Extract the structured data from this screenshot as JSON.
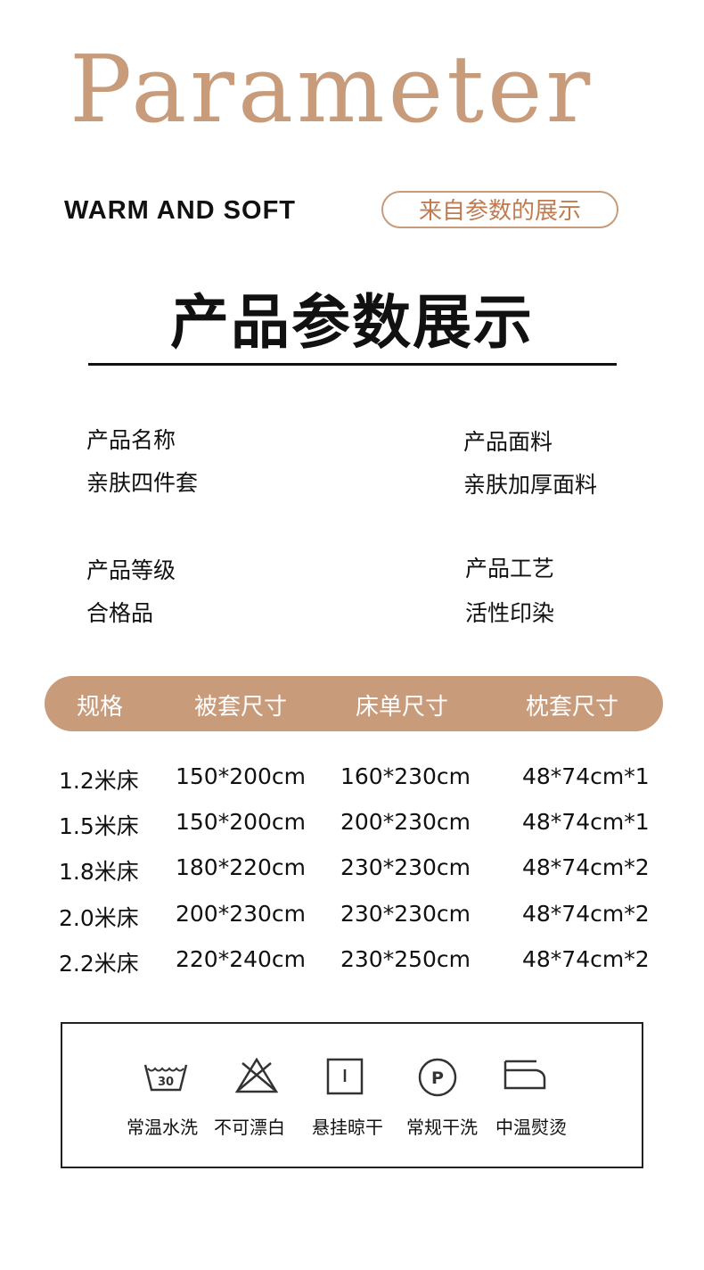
{
  "header": {
    "title": "Parameter",
    "subtitle_en": "WARM AND SOFT",
    "subtitle_cn": "来自参数的展示",
    "heading": "产品参数展示"
  },
  "params": [
    {
      "label": "产品名称",
      "value": "亲肤四件套"
    },
    {
      "label": "产品面料",
      "value": "亲肤加厚面料"
    },
    {
      "label": "产品等级",
      "value": "合格品"
    },
    {
      "label": "产品工艺",
      "value": "活性印染"
    }
  ],
  "table": {
    "headers": [
      "规格",
      "被套尺寸",
      "床单尺寸",
      "枕套尺寸"
    ],
    "rows": [
      [
        "1.2米床",
        "150*200cm",
        "160*230cm",
        "48*74cm*1"
      ],
      [
        "1.5米床",
        "150*200cm",
        "200*230cm",
        "48*74cm*1"
      ],
      [
        "1.8米床",
        "180*220cm",
        "230*230cm",
        "48*74cm*2"
      ],
      [
        "2.0米床",
        "200*230cm",
        "230*230cm",
        "48*74cm*2"
      ],
      [
        "2.2米床",
        "220*240cm",
        "230*250cm",
        "48*74cm*2"
      ]
    ]
  },
  "care": [
    {
      "icon": "wash-30-icon",
      "label": "常温水洗",
      "temp": "30"
    },
    {
      "icon": "no-bleach-icon",
      "label": "不可漂白"
    },
    {
      "icon": "hang-dry-icon",
      "label": "悬挂晾干"
    },
    {
      "icon": "dry-clean-p-icon",
      "label": "常规干洗",
      "letter": "P"
    },
    {
      "icon": "iron-medium-icon",
      "label": "中温熨烫"
    }
  ],
  "colors": {
    "accent": "#c89b7b"
  }
}
